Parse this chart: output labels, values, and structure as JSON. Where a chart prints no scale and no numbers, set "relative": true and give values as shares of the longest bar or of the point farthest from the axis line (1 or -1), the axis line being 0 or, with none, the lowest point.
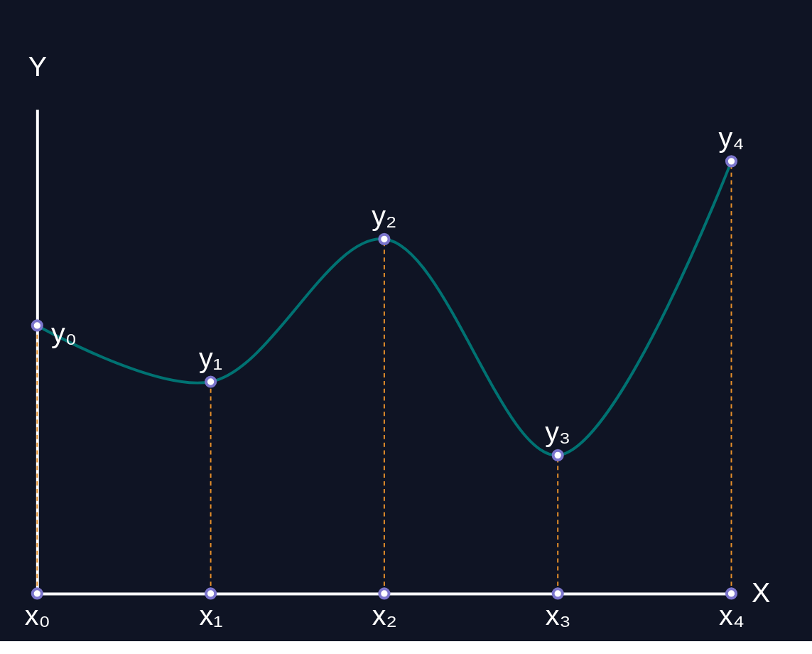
{
  "chart_data": {
    "type": "line",
    "relative": true,
    "xlabel": "X",
    "ylabel": "Y",
    "categories": [
      "x₀",
      "x₁",
      "x₂",
      "x₃",
      "x₄"
    ],
    "series": [
      {
        "color": "#007272",
        "values": [
          0.62,
          0.49,
          0.82,
          0.32,
          1.0
        ]
      },
      {
        "type": "scatter",
        "color": "#7b75cc",
        "values": [
          0,
          0,
          0,
          0,
          0
        ]
      }
    ],
    "marker": "circle",
    "grid": false,
    "ref_lines": [
      {
        "axis": "x",
        "value": "x₀",
        "color": "#e8902a",
        "line_style": "dashed"
      },
      {
        "axis": "x",
        "value": "x₁",
        "color": "#e8902a",
        "line_style": "dashed"
      },
      {
        "axis": "x",
        "value": "x₂",
        "color": "#e8902a",
        "line_style": "dashed"
      },
      {
        "axis": "x",
        "value": "x₃",
        "color": "#e8902a",
        "line_style": "dashed"
      },
      {
        "axis": "x",
        "value": "x₄",
        "color": "#e8902a",
        "line_style": "dashed"
      }
    ],
    "annotations": [
      {
        "text": "y₀",
        "x": "x₀",
        "y": 0.62
      },
      {
        "text": "y₁",
        "x": "x₁",
        "y": 0.49
      },
      {
        "text": "y₂",
        "x": "x₂",
        "y": 0.82
      },
      {
        "text": "y₃",
        "x": "x₃",
        "y": 0.32
      },
      {
        "text": "y₄",
        "x": "x₄",
        "y": 1.0
      }
    ]
  }
}
